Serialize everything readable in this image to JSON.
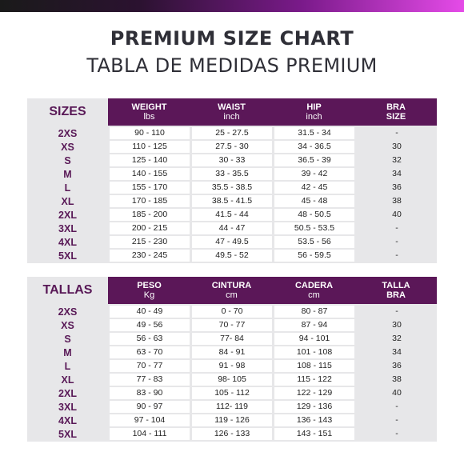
{
  "title": "PREMIUM SIZE CHART",
  "subtitle": "TABLA DE MEDIDAS PREMIUM",
  "tables": [
    {
      "label": "SIZES",
      "columns": [
        {
          "title": "WEIGHT",
          "unit": "lbs"
        },
        {
          "title": "WAIST",
          "unit": "inch"
        },
        {
          "title": "HIP",
          "unit": "inch"
        },
        {
          "title": "BRA",
          "unit": "SIZE"
        }
      ],
      "rows": [
        {
          "size": "2XS",
          "c1": "90 - 110",
          "c2": "25 - 27.5",
          "c3": "31.5 - 34",
          "c4": "-"
        },
        {
          "size": "XS",
          "c1": "110 - 125",
          "c2": "27.5 - 30",
          "c3": "34 - 36.5",
          "c4": "30"
        },
        {
          "size": "S",
          "c1": "125 - 140",
          "c2": "30 - 33",
          "c3": "36.5 - 39",
          "c4": "32"
        },
        {
          "size": "M",
          "c1": "140 - 155",
          "c2": "33 - 35.5",
          "c3": "39 - 42",
          "c4": "34"
        },
        {
          "size": "L",
          "c1": "155 - 170",
          "c2": "35.5 - 38.5",
          "c3": "42 - 45",
          "c4": "36"
        },
        {
          "size": "XL",
          "c1": "170 - 185",
          "c2": "38.5 - 41.5",
          "c3": "45 - 48",
          "c4": "38"
        },
        {
          "size": "2XL",
          "c1": "185 - 200",
          "c2": "41.5 - 44",
          "c3": "48 - 50.5",
          "c4": "40"
        },
        {
          "size": "3XL",
          "c1": "200 - 215",
          "c2": "44 - 47",
          "c3": "50.5 - 53.5",
          "c4": "-"
        },
        {
          "size": "4XL",
          "c1": "215 - 230",
          "c2": "47 - 49.5",
          "c3": "53.5 - 56",
          "c4": "-"
        },
        {
          "size": "5XL",
          "c1": "230 - 245",
          "c2": "49.5 - 52",
          "c3": "56 - 59.5",
          "c4": "-"
        }
      ]
    },
    {
      "label": "TALLAS",
      "columns": [
        {
          "title": "PESO",
          "unit": "Kg"
        },
        {
          "title": "CINTURA",
          "unit": "cm"
        },
        {
          "title": "CADERA",
          "unit": "cm"
        },
        {
          "title": "TALLA",
          "unit": "BRA"
        }
      ],
      "rows": [
        {
          "size": "2XS",
          "c1": "40 - 49",
          "c2": "0 - 70",
          "c3": "80 - 87",
          "c4": "-"
        },
        {
          "size": "XS",
          "c1": "49 - 56",
          "c2": "70 - 77",
          "c3": "87 - 94",
          "c4": "30"
        },
        {
          "size": "S",
          "c1": "56 - 63",
          "c2": "77- 84",
          "c3": "94 - 101",
          "c4": "32"
        },
        {
          "size": "M",
          "c1": "63 - 70",
          "c2": "84 - 91",
          "c3": "101 - 108",
          "c4": "34"
        },
        {
          "size": "L",
          "c1": "70 - 77",
          "c2": "91 - 98",
          "c3": "108 - 115",
          "c4": "36"
        },
        {
          "size": "XL",
          "c1": "77 - 83",
          "c2": "98- 105",
          "c3": "115 - 122",
          "c4": "38"
        },
        {
          "size": "2XL",
          "c1": "83 - 90",
          "c2": "105 - 112",
          "c3": "122 - 129",
          "c4": "40"
        },
        {
          "size": "3XL",
          "c1": "90 - 97",
          "c2": "112- 119",
          "c3": "129 - 136",
          "c4": "-"
        },
        {
          "size": "4XL",
          "c1": "97 - 104",
          "c2": "119 - 126",
          "c3": "136 - 143",
          "c4": "-"
        },
        {
          "size": "5XL",
          "c1": "104 - 111",
          "c2": "126 - 133",
          "c3": "143 - 151",
          "c4": "-"
        }
      ]
    }
  ]
}
